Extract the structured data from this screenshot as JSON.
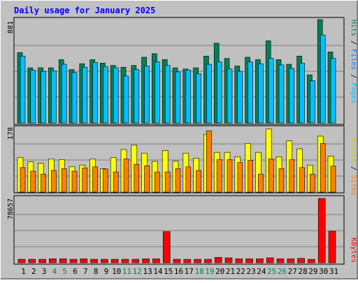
{
  "title": "Daily usage for January 2025",
  "colors": {
    "hits": "#00805c",
    "files": "#00c0ff",
    "visits": "#ffff00",
    "sites": "#ff8000",
    "kbytes": "#ff0000",
    "weekend_label": "#00805c",
    "title": "#0000ff",
    "panel_bg": "#c0c0c0"
  },
  "chart_data": [
    {
      "type": "bar",
      "title": "Daily usage for January 2025",
      "categories": [
        "1",
        "2",
        "3",
        "4",
        "5",
        "6",
        "7",
        "8",
        "9",
        "10",
        "11",
        "12",
        "13",
        "14",
        "15",
        "16",
        "17",
        "18",
        "19",
        "20",
        "21",
        "22",
        "23",
        "24",
        "25",
        "26",
        "27",
        "28",
        "29",
        "30",
        "31"
      ],
      "weekend_categories": [
        "4",
        "5",
        "11",
        "12",
        "18",
        "19",
        "25",
        "26"
      ],
      "ymax_label": "881",
      "ylim": [
        0,
        881
      ],
      "legend": [
        "Pages",
        "Files",
        "Hits"
      ],
      "series": [
        {
          "name": "Hits",
          "values": [
            600,
            470,
            470,
            470,
            540,
            455,
            505,
            540,
            510,
            490,
            475,
            490,
            560,
            590,
            540,
            470,
            460,
            470,
            570,
            680,
            550,
            485,
            560,
            540,
            700,
            540,
            500,
            570,
            410,
            881,
            605
          ]
        },
        {
          "name": "Files",
          "values": [
            570,
            450,
            440,
            445,
            500,
            430,
            475,
            515,
            480,
            470,
            400,
            455,
            485,
            520,
            490,
            435,
            450,
            420,
            500,
            520,
            460,
            440,
            520,
            505,
            550,
            495,
            465,
            510,
            360,
            750,
            550
          ]
        },
        {
          "name": "Pages",
          "values": [
            0,
            0,
            0,
            0,
            0,
            0,
            0,
            0,
            0,
            0,
            0,
            0,
            0,
            0,
            0,
            0,
            0,
            0,
            0,
            0,
            0,
            0,
            0,
            0,
            0,
            0,
            0,
            0,
            0,
            0,
            0
          ]
        }
      ]
    },
    {
      "type": "bar",
      "ymax_label": "178",
      "ylim": [
        0,
        178
      ],
      "legend": [
        "Sites",
        "Visits"
      ],
      "series": [
        {
          "name": "Visits",
          "values": [
            96,
            84,
            80,
            92,
            90,
            71,
            75,
            92,
            65,
            96,
            118,
            130,
            108,
            85,
            115,
            86,
            108,
            94,
            160,
            110,
            110,
            98,
            135,
            110,
            175,
            98,
            142,
            120,
            75,
            155,
            100
          ]
        },
        {
          "name": "Sites",
          "values": [
            68,
            58,
            50,
            60,
            65,
            58,
            67,
            70,
            64,
            56,
            92,
            77,
            73,
            56,
            56,
            65,
            70,
            60,
            170,
            90,
            90,
            82,
            88,
            50,
            92,
            65,
            90,
            68,
            50,
            135,
            72
          ]
        }
      ]
    },
    {
      "type": "bar",
      "ymax_label": "78657",
      "ylim": [
        0,
        78657
      ],
      "legend": [
        "KBytes"
      ],
      "series": [
        {
          "name": "KBytes",
          "values": [
            4200,
            4200,
            4200,
            4800,
            4800,
            4200,
            4800,
            4200,
            4200,
            4200,
            4200,
            4200,
            4800,
            4800,
            38000,
            4200,
            4200,
            4200,
            4200,
            6500,
            6000,
            4800,
            4800,
            4800,
            6000,
            4800,
            4800,
            5300,
            4200,
            78657,
            38500
          ]
        }
      ]
    }
  ]
}
